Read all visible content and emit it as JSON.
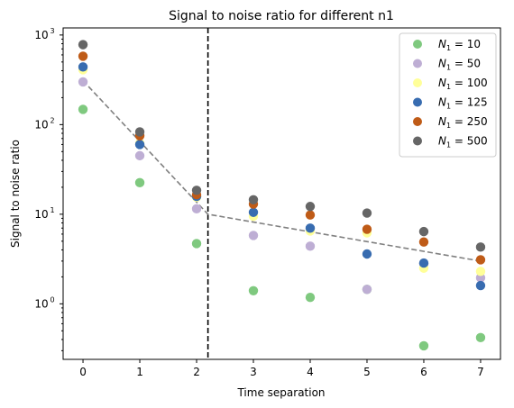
{
  "chart_data": {
    "type": "scatter",
    "title": "Signal to noise ratio for different n1",
    "xlabel": "Time separation",
    "ylabel": "Signal to noise ratio",
    "xlim": [
      -0.35,
      7.35
    ],
    "ylim": [
      0.24,
      1200
    ],
    "yscale": "log",
    "xticks": [
      0,
      1,
      2,
      3,
      4,
      5,
      6,
      7
    ],
    "yticks": [
      {
        "value": 1,
        "label": "10",
        "exp": "0"
      },
      {
        "value": 10,
        "label": "10",
        "exp": "1"
      },
      {
        "value": 100,
        "label": "10",
        "exp": "2"
      },
      {
        "value": 1000,
        "label": "10",
        "exp": "3"
      }
    ],
    "legend_position": "top-right",
    "series": [
      {
        "name": "N1 = 10",
        "sym": "N",
        "sub": "1",
        "rest": " = 10",
        "color": "#7fc97f",
        "x": [
          0,
          1,
          2,
          3,
          4,
          5,
          6,
          7
        ],
        "y": [
          148,
          22.5,
          4.7,
          1.4,
          1.18,
          1.45,
          0.34,
          0.42
        ]
      },
      {
        "name": "N1 = 50",
        "sym": "N",
        "sub": "1",
        "rest": " = 50",
        "color": "#beaed4",
        "x": [
          0,
          1,
          2,
          3,
          4,
          5,
          6,
          7
        ],
        "y": [
          300,
          45,
          11.5,
          5.8,
          4.4,
          1.45,
          2.8,
          1.95
        ]
      },
      {
        "name": "N1 = 100",
        "sym": "N",
        "sub": "1",
        "rest": " = 100",
        "color": "#ffff99",
        "x": [
          0,
          1,
          2,
          3,
          4,
          5,
          6,
          7
        ],
        "y": [
          410,
          62,
          15.5,
          9.5,
          6.5,
          6.2,
          2.5,
          2.3
        ]
      },
      {
        "name": "N1 = 125",
        "sym": "N",
        "sub": "1",
        "rest": " = 125",
        "color": "#386cb0",
        "x": [
          0,
          1,
          2,
          3,
          4,
          5,
          6,
          7
        ],
        "y": [
          440,
          60,
          15.8,
          10.5,
          7.0,
          3.6,
          2.85,
          1.6
        ]
      },
      {
        "name": "N1 = 250",
        "sym": "N",
        "sub": "1",
        "rest": " = 250",
        "color": "#bf5b17",
        "x": [
          0,
          1,
          2,
          3,
          4,
          5,
          6,
          7
        ],
        "y": [
          580,
          75,
          16.5,
          13.0,
          9.8,
          6.8,
          4.9,
          3.1
        ]
      },
      {
        "name": "N1 = 500",
        "sym": "N",
        "sub": "1",
        "rest": " = 500",
        "color": "#666666",
        "x": [
          0,
          1,
          2,
          3,
          4,
          5,
          6,
          7
        ],
        "y": [
          780,
          83,
          18.5,
          14.5,
          12.2,
          10.3,
          6.4,
          4.3
        ]
      }
    ],
    "fit_lines": [
      {
        "color": "#808080",
        "style": "dashed",
        "points": [
          [
            0,
            310
          ],
          [
            2.2,
            10
          ],
          [
            7,
            3.0
          ]
        ]
      }
    ],
    "vlines": [
      {
        "x": 2.2,
        "color": "#000000",
        "style": "dashed"
      }
    ]
  }
}
